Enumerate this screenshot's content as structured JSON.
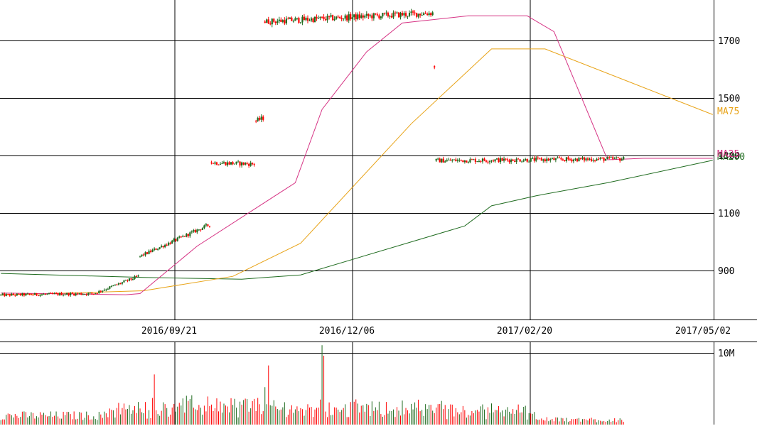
{
  "chart_data": {
    "type": "candlestick",
    "price_axis": {
      "ticks": [
        900,
        1100,
        1300,
        1500,
        1700
      ],
      "tick_labels": [
        "900",
        "1100",
        "1300",
        "1500",
        "1700"
      ],
      "ylim": [
        730,
        1840
      ]
    },
    "date_axis": {
      "labels": [
        "2016/09/21",
        "2016/12/06",
        "2017/02/20",
        "2017/05/02"
      ]
    },
    "volume_axis": {
      "tick_labels": [
        "10M"
      ],
      "ylim": [
        0,
        11000000
      ]
    },
    "grid": true,
    "legend": [
      {
        "name": "MA75",
        "color": "#e8a317"
      },
      {
        "name": "MA200",
        "color": "#1f6b1f"
      },
      {
        "name": "MA25",
        "color": "#d63384"
      }
    ],
    "colors": {
      "up": "#1f6b1f",
      "down": "#ff0000",
      "ma25": "#d63384",
      "ma75": "#e8a317",
      "ma200": "#1f6b1f",
      "grid": "#000000"
    },
    "segments": [
      {
        "start": 0,
        "count": 52,
        "from": 815,
        "to": 820
      },
      {
        "start": 52,
        "count": 26,
        "from": 820,
        "to": 880
      },
      {
        "start": 78,
        "count": 40,
        "from": 950,
        "to": 1060
      },
      {
        "start": 118,
        "count": 25,
        "from": 1275,
        "to": 1270
      },
      {
        "start": 143,
        "count": 5,
        "from": 1420,
        "to": 1430
      },
      {
        "start": 148,
        "count": 95,
        "from": 1765,
        "to": 1795
      },
      {
        "start": 243,
        "count": 1,
        "from": 1610,
        "to": 1620
      },
      {
        "start": 244,
        "count": 106,
        "from": 1282,
        "to": 1288
      }
    ],
    "ma25": [
      [
        0,
        822
      ],
      [
        70,
        816
      ],
      [
        78,
        820
      ],
      [
        110,
        985
      ],
      [
        165,
        1205
      ],
      [
        180,
        1460
      ],
      [
        205,
        1660
      ],
      [
        225,
        1760
      ],
      [
        262,
        1785
      ],
      [
        295,
        1785
      ],
      [
        310,
        1730
      ],
      [
        340,
        1285
      ],
      [
        360,
        1290
      ],
      [
        399,
        1290
      ]
    ],
    "ma75": [
      [
        0,
        815
      ],
      [
        80,
        830
      ],
      [
        130,
        880
      ],
      [
        168,
        995
      ],
      [
        230,
        1410
      ],
      [
        275,
        1670
      ],
      [
        305,
        1670
      ],
      [
        399,
        1442
      ]
    ],
    "ma200": [
      [
        0,
        890
      ],
      [
        80,
        876
      ],
      [
        135,
        870
      ],
      [
        168,
        885
      ],
      [
        260,
        1055
      ],
      [
        275,
        1125
      ],
      [
        300,
        1160
      ],
      [
        340,
        1205
      ],
      [
        399,
        1283
      ]
    ],
    "volume_bars": 350
  }
}
